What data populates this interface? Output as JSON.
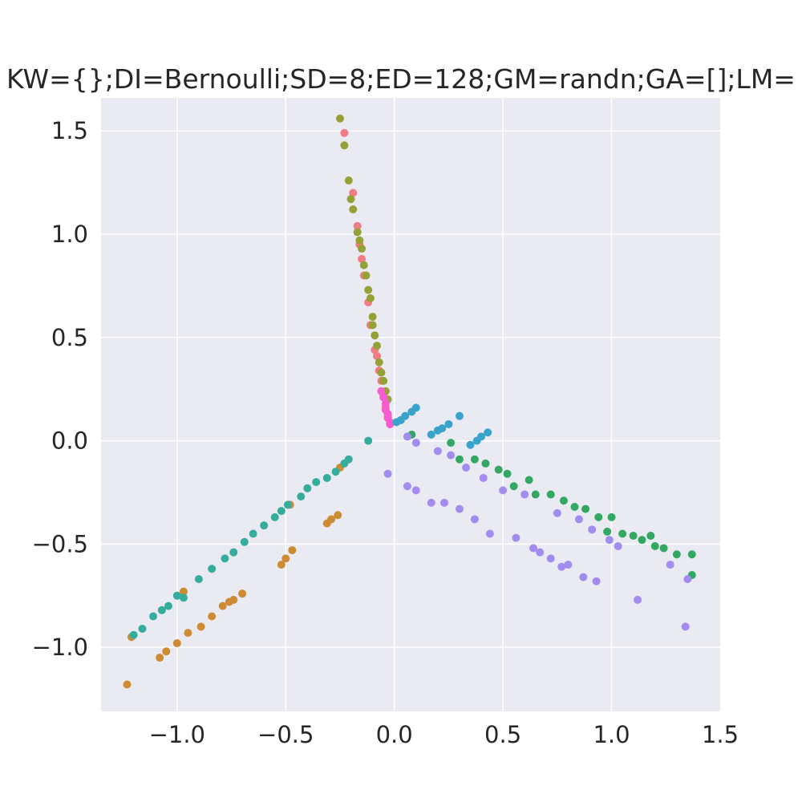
{
  "chart_data": {
    "type": "scatter",
    "title": "KW={};DI=Bernoulli;SD=8;ED=128;GM=randn;GA=[];LM=",
    "xlabel": "",
    "ylabel": "",
    "xlim": [
      -1.35,
      1.5
    ],
    "ylim": [
      -1.31,
      1.66
    ],
    "xticks": [
      -1.0,
      -0.5,
      0.0,
      0.5,
      1.0,
      1.5
    ],
    "xtick_labels": [
      "−1.0",
      "−0.5",
      "0.0",
      "0.5",
      "1.0",
      "1.5"
    ],
    "yticks": [
      -1.0,
      -0.5,
      0.0,
      0.5,
      1.0,
      1.5
    ],
    "ytick_labels": [
      "−1.0",
      "−0.5",
      "0.0",
      "0.5",
      "1.0",
      "1.5"
    ],
    "grid": true,
    "legend": "none",
    "colors": {
      "background": "#eaeaf2",
      "grid": "#ffffff",
      "text": "#262626"
    },
    "series": [
      {
        "color": "#f37b84",
        "points": [
          [
            -0.23,
            1.49
          ],
          [
            -0.19,
            1.2
          ],
          [
            -0.17,
            1.04
          ],
          [
            -0.16,
            0.95
          ],
          [
            -0.15,
            0.88
          ],
          [
            -0.14,
            0.8
          ],
          [
            -0.12,
            0.67
          ],
          [
            -0.11,
            0.56
          ],
          [
            -0.09,
            0.44
          ],
          [
            -0.08,
            0.41
          ],
          [
            -0.07,
            0.34
          ],
          [
            -0.06,
            0.29
          ],
          [
            -0.05,
            0.22
          ],
          [
            -0.04,
            0.16
          ],
          [
            -0.03,
            0.12
          ]
        ]
      },
      {
        "color": "#95a037",
        "points": [
          [
            -0.25,
            1.56
          ],
          [
            -0.23,
            1.43
          ],
          [
            -0.21,
            1.26
          ],
          [
            -0.2,
            1.17
          ],
          [
            -0.19,
            1.12
          ],
          [
            -0.17,
            1.01
          ],
          [
            -0.16,
            0.97
          ],
          [
            -0.15,
            0.93
          ],
          [
            -0.14,
            0.85
          ],
          [
            -0.13,
            0.8
          ],
          [
            -0.12,
            0.73
          ],
          [
            -0.11,
            0.69
          ],
          [
            -0.1,
            0.6
          ],
          [
            -0.1,
            0.56
          ],
          [
            -0.09,
            0.51
          ],
          [
            -0.08,
            0.46
          ],
          [
            -0.07,
            0.38
          ],
          [
            -0.06,
            0.33
          ],
          [
            -0.05,
            0.29
          ],
          [
            -0.04,
            0.24
          ],
          [
            -0.03,
            0.2
          ]
        ]
      },
      {
        "color": "#f65cd0",
        "points": [
          [
            -0.06,
            0.24
          ],
          [
            -0.05,
            0.21
          ],
          [
            -0.04,
            0.18
          ],
          [
            -0.04,
            0.15
          ],
          [
            -0.03,
            0.13
          ],
          [
            -0.03,
            0.11
          ],
          [
            -0.02,
            0.09
          ],
          [
            -0.02,
            0.08
          ]
        ]
      },
      {
        "color": "#3aa3cc",
        "points": [
          [
            0.01,
            0.09
          ],
          [
            0.03,
            0.1
          ],
          [
            0.05,
            0.12
          ],
          [
            0.08,
            0.14
          ],
          [
            0.1,
            0.16
          ],
          [
            0.17,
            0.03
          ],
          [
            0.2,
            0.05
          ],
          [
            0.22,
            0.06
          ],
          [
            0.25,
            0.08
          ],
          [
            0.3,
            0.12
          ],
          [
            0.35,
            -0.02
          ],
          [
            0.38,
            0.0
          ],
          [
            0.4,
            0.02
          ],
          [
            0.43,
            0.04
          ]
        ]
      },
      {
        "color": "#32a862",
        "points": [
          [
            0.08,
            0.03
          ],
          [
            0.26,
            -0.01
          ],
          [
            0.3,
            -0.09
          ],
          [
            0.37,
            -0.09
          ],
          [
            0.42,
            -0.11
          ],
          [
            0.48,
            -0.14
          ],
          [
            0.52,
            -0.16
          ],
          [
            0.55,
            -0.22
          ],
          [
            0.62,
            -0.19
          ],
          [
            0.65,
            -0.26
          ],
          [
            0.72,
            -0.26
          ],
          [
            0.78,
            -0.29
          ],
          [
            0.83,
            -0.32
          ],
          [
            0.88,
            -0.33
          ],
          [
            0.94,
            -0.37
          ],
          [
            0.98,
            -0.44
          ],
          [
            1.0,
            -0.37
          ],
          [
            1.05,
            -0.45
          ],
          [
            1.1,
            -0.46
          ],
          [
            1.14,
            -0.48
          ],
          [
            1.18,
            -0.46
          ],
          [
            1.2,
            -0.51
          ],
          [
            1.24,
            -0.52
          ],
          [
            1.3,
            -0.55
          ],
          [
            1.37,
            -0.55
          ],
          [
            1.37,
            -0.65
          ]
        ]
      },
      {
        "color": "#a28cf0",
        "points": [
          [
            -0.03,
            -0.16
          ],
          [
            0.06,
            -0.22
          ],
          [
            0.1,
            -0.24
          ],
          [
            0.06,
            0.02
          ],
          [
            0.1,
            -0.01
          ],
          [
            0.17,
            -0.3
          ],
          [
            0.2,
            -0.05
          ],
          [
            0.23,
            -0.3
          ],
          [
            0.26,
            -0.07
          ],
          [
            0.3,
            -0.33
          ],
          [
            0.33,
            -0.13
          ],
          [
            0.37,
            -0.38
          ],
          [
            0.41,
            -0.18
          ],
          [
            0.44,
            -0.45
          ],
          [
            0.5,
            -0.24
          ],
          [
            0.56,
            -0.47
          ],
          [
            0.6,
            -0.26
          ],
          [
            0.64,
            -0.52
          ],
          [
            0.67,
            -0.54
          ],
          [
            0.72,
            -0.57
          ],
          [
            0.75,
            -0.35
          ],
          [
            0.77,
            -0.61
          ],
          [
            0.8,
            -0.6
          ],
          [
            0.85,
            -0.38
          ],
          [
            0.87,
            -0.66
          ],
          [
            0.91,
            -0.43
          ],
          [
            0.93,
            -0.68
          ],
          [
            0.99,
            -0.48
          ],
          [
            1.03,
            -0.51
          ],
          [
            1.12,
            -0.77
          ],
          [
            1.27,
            -0.6
          ],
          [
            1.35,
            -0.67
          ],
          [
            1.34,
            -0.9
          ]
        ]
      },
      {
        "color": "#cd8b34",
        "points": [
          [
            -1.23,
            -1.18
          ],
          [
            -1.21,
            -0.95
          ],
          [
            -1.08,
            -1.05
          ],
          [
            -1.05,
            -1.02
          ],
          [
            -1.0,
            -0.98
          ],
          [
            -0.95,
            -0.93
          ],
          [
            -0.89,
            -0.9
          ],
          [
            -0.84,
            -0.85
          ],
          [
            -0.79,
            -0.8
          ],
          [
            -0.76,
            -0.78
          ],
          [
            -0.74,
            -0.77
          ],
          [
            -0.7,
            -0.74
          ],
          [
            -0.97,
            -0.73
          ],
          [
            -0.52,
            -0.6
          ],
          [
            -0.5,
            -0.57
          ],
          [
            -0.47,
            -0.53
          ],
          [
            -0.31,
            -0.4
          ],
          [
            -0.29,
            -0.38
          ],
          [
            -0.26,
            -0.36
          ],
          [
            -0.25,
            -0.13
          ],
          [
            -0.48,
            -0.31
          ]
        ]
      },
      {
        "color": "#36ac9c",
        "points": [
          [
            -1.2,
            -0.94
          ],
          [
            -1.16,
            -0.91
          ],
          [
            -1.11,
            -0.85
          ],
          [
            -1.07,
            -0.82
          ],
          [
            -1.04,
            -0.8
          ],
          [
            -1.0,
            -0.75
          ],
          [
            -0.97,
            -0.76
          ],
          [
            -0.9,
            -0.67
          ],
          [
            -0.84,
            -0.62
          ],
          [
            -0.78,
            -0.57
          ],
          [
            -0.74,
            -0.54
          ],
          [
            -0.69,
            -0.49
          ],
          [
            -0.65,
            -0.45
          ],
          [
            -0.6,
            -0.41
          ],
          [
            -0.55,
            -0.37
          ],
          [
            -0.52,
            -0.34
          ],
          [
            -0.49,
            -0.31
          ],
          [
            -0.43,
            -0.27
          ],
          [
            -0.4,
            -0.23
          ],
          [
            -0.36,
            -0.2
          ],
          [
            -0.31,
            -0.18
          ],
          [
            -0.27,
            -0.15
          ],
          [
            -0.23,
            -0.11
          ],
          [
            -0.21,
            -0.09
          ],
          [
            -0.12,
            0.0
          ]
        ]
      }
    ]
  }
}
